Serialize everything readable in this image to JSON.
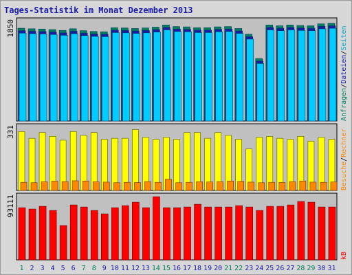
{
  "title": "Tages-Statistik im Monat Dezember 2013",
  "chart_data": [
    {
      "type": "bar",
      "name": "requests-files-panel",
      "ymax_label": "1850",
      "ylim": [
        0,
        1850
      ],
      "categories": [
        "1",
        "2",
        "3",
        "4",
        "5",
        "6",
        "7",
        "8",
        "9",
        "10",
        "11",
        "12",
        "13",
        "14",
        "15",
        "16",
        "17",
        "18",
        "19",
        "20",
        "21",
        "22",
        "23",
        "24",
        "25",
        "26",
        "27",
        "28",
        "29",
        "30",
        "31"
      ],
      "series": [
        {
          "name": "Anfragen",
          "color": "#00805c",
          "values": [
            1710,
            1700,
            1695,
            1685,
            1670,
            1700,
            1665,
            1650,
            1645,
            1720,
            1715,
            1705,
            1715,
            1730,
            1770,
            1740,
            1735,
            1720,
            1720,
            1735,
            1740,
            1705,
            1600,
            1150,
            1770,
            1755,
            1770,
            1760,
            1755,
            1790,
            1800
          ]
        },
        {
          "name": "Dateien",
          "color": "#1a1aa8",
          "values": [
            1690,
            1680,
            1675,
            1665,
            1650,
            1680,
            1645,
            1630,
            1625,
            1700,
            1695,
            1685,
            1695,
            1710,
            1750,
            1720,
            1715,
            1700,
            1700,
            1715,
            1720,
            1685,
            1580,
            1130,
            1750,
            1735,
            1750,
            1740,
            1735,
            1770,
            1780
          ]
        },
        {
          "name": "Seiten",
          "color": "#00ccff",
          "values": [
            1670,
            1660,
            1655,
            1645,
            1630,
            1660,
            1625,
            1610,
            1605,
            1680,
            1675,
            1665,
            1675,
            1690,
            1730,
            1700,
            1695,
            1680,
            1680,
            1695,
            1700,
            1665,
            1560,
            1110,
            1730,
            1715,
            1730,
            1720,
            1715,
            1750,
            1760
          ]
        }
      ]
    },
    {
      "type": "bar",
      "name": "visits-sites-panel",
      "ymax_label": "331",
      "ylim": [
        0,
        331
      ],
      "categories": [
        "1",
        "2",
        "3",
        "4",
        "5",
        "6",
        "7",
        "8",
        "9",
        "10",
        "11",
        "12",
        "13",
        "14",
        "15",
        "16",
        "17",
        "18",
        "19",
        "20",
        "21",
        "22",
        "23",
        "24",
        "25",
        "26",
        "27",
        "28",
        "29",
        "30",
        "31"
      ],
      "series": [
        {
          "name": "Besuche",
          "color": "#ffff00",
          "values": [
            305,
            270,
            300,
            280,
            260,
            305,
            285,
            300,
            265,
            270,
            270,
            315,
            275,
            265,
            275,
            265,
            300,
            300,
            270,
            300,
            285,
            265,
            215,
            275,
            280,
            270,
            265,
            280,
            255,
            275,
            265
          ]
        },
        {
          "name": "Rechner",
          "color": "#ff8800",
          "values": [
            42,
            40,
            45,
            48,
            46,
            50,
            49,
            45,
            43,
            40,
            42,
            41,
            46,
            42,
            58,
            40,
            42,
            45,
            44,
            46,
            49,
            47,
            43,
            40,
            42,
            41,
            46,
            49,
            43,
            42,
            44
          ]
        }
      ]
    },
    {
      "type": "bar",
      "name": "kbytes-panel",
      "ymax_label": "93111",
      "ylim": [
        0,
        93111
      ],
      "categories": [
        "1",
        "2",
        "3",
        "4",
        "5",
        "6",
        "7",
        "8",
        "9",
        "10",
        "11",
        "12",
        "13",
        "14",
        "15",
        "16",
        "17",
        "18",
        "19",
        "20",
        "21",
        "22",
        "23",
        "24",
        "25",
        "26",
        "27",
        "28",
        "29",
        "30",
        "31"
      ],
      "series": [
        {
          "name": "kB",
          "color": "#ff0000",
          "values": [
            76000,
            74000,
            78000,
            72000,
            50000,
            80000,
            77000,
            72000,
            67000,
            76000,
            79000,
            84000,
            76000,
            92000,
            76000,
            76000,
            77000,
            81000,
            77000,
            77000,
            77000,
            79000,
            77000,
            72000,
            78000,
            78000,
            80000,
            85000,
            84000,
            77000,
            77000
          ]
        }
      ]
    }
  ],
  "day_label_colors": [
    "#00805c",
    "#1a1aa8",
    "#1a1aa8",
    "#1a1aa8",
    "#1a1aa8",
    "#1a1aa8",
    "#00805c",
    "#00805c",
    "#1a1aa8",
    "#1a1aa8",
    "#1a1aa8",
    "#1a1aa8",
    "#1a1aa8",
    "#00805c",
    "#00805c",
    "#1a1aa8",
    "#1a1aa8",
    "#1a1aa8",
    "#1a1aa8",
    "#1a1aa8",
    "#00805c",
    "#00805c",
    "#1a1aa8",
    "#1a1aa8",
    "#1a1aa8",
    "#1a1aa8",
    "#1a1aa8",
    "#00805c",
    "#00805c",
    "#1a1aa8",
    "#1a1aa8"
  ],
  "side_labels": {
    "top": [
      {
        "text": "Anfragen",
        "color": "#00805c"
      },
      {
        "text": "/",
        "color": "#000000"
      },
      {
        "text": "Dateien",
        "color": "#1a1aa8"
      },
      {
        "text": "/",
        "color": "#000000"
      },
      {
        "text": "Seiten",
        "color": "#00aacc"
      }
    ],
    "middle": [
      {
        "text": "Besuche",
        "color": "#ff8800"
      },
      {
        "text": "/",
        "color": "#000000"
      },
      {
        "text": "Rechner",
        "color": "#ff8800"
      }
    ],
    "bottom": [
      {
        "text": "kB",
        "color": "#ff0000"
      }
    ]
  }
}
